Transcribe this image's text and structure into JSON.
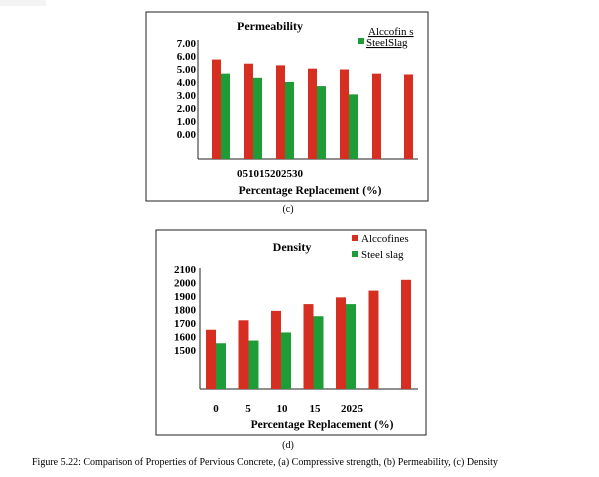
{
  "colors": {
    "alccofines": "#d62f22",
    "steel_slag": "#1e9c36",
    "frame": "#222222"
  },
  "caption": "Figure 5.22: Comparison of Properties of Pervious Concrete, (a) Compressive strength, (b) Permeability, (c) Density",
  "chart_data": [
    {
      "type": "bar",
      "title": "Permeability",
      "panel_label": "(c)",
      "xlabel": "Percentage Replacement (%)",
      "ylabel": "",
      "x_tick_text": "051015202530",
      "yticks": [
        "7.00",
        "6.00",
        "5.00",
        "4.00",
        "3.00",
        "2.00",
        "1.00",
        "0.00"
      ],
      "ylim": [
        0,
        7
      ],
      "categories": [
        "0",
        "5",
        "10",
        "15",
        "20",
        "25",
        "30"
      ],
      "series": [
        {
          "name": "Alccofines",
          "legend_text": "Alccofin s",
          "values": [
            6.0,
            5.75,
            5.65,
            5.45,
            5.4,
            5.15,
            5.1
          ]
        },
        {
          "name": "SteelSlag",
          "legend_text": "SteelSlag",
          "values": [
            5.15,
            4.9,
            4.65,
            4.4,
            3.9,
            null,
            null
          ]
        }
      ],
      "legend": "top-right"
    },
    {
      "type": "bar",
      "title": "Density",
      "panel_label": "(d)",
      "xlabel": "Percentage Replacement (%)",
      "ylabel": "",
      "xticks": [
        "0",
        "5",
        "10",
        "15",
        "2025"
      ],
      "yticks": [
        "2100",
        "2000",
        "1900",
        "1800",
        "1700",
        "1600",
        "1500"
      ],
      "ylim": [
        1500,
        2100
      ],
      "categories": [
        "0",
        "5",
        "10",
        "15",
        "20",
        "25",
        "30"
      ],
      "series": [
        {
          "name": "Alccofines",
          "legend_text": "Alccofines",
          "values": [
            1650,
            1720,
            1790,
            1840,
            1890,
            1940,
            2020
          ]
        },
        {
          "name": "Steel slag",
          "legend_text": "Steel slag",
          "values": [
            1550,
            1570,
            1630,
            1750,
            1840,
            null,
            null
          ]
        }
      ],
      "legend": "top-right"
    }
  ]
}
